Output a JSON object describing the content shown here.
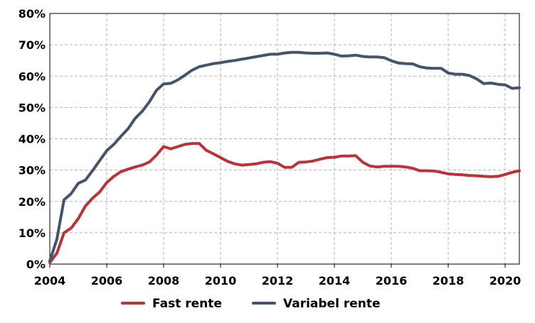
{
  "chart_data": {
    "type": "line",
    "title": "",
    "xlabel": "",
    "ylabel": "",
    "xlim": [
      2004,
      2020.5
    ],
    "ylim": [
      0,
      80
    ],
    "x_ticks": [
      2004,
      2006,
      2008,
      2010,
      2012,
      2014,
      2016,
      2018,
      2020
    ],
    "x_tick_labels": [
      "2004",
      "2006",
      "2008",
      "2010",
      "2012",
      "2014",
      "2016",
      "2018",
      "2020"
    ],
    "y_ticks": [
      0,
      10,
      20,
      30,
      40,
      50,
      60,
      70,
      80
    ],
    "y_tick_labels": [
      "0%",
      "10%",
      "20%",
      "30%",
      "40%",
      "50%",
      "60%",
      "70%",
      "80%"
    ],
    "grid": true,
    "legend_position": "bottom",
    "series": [
      {
        "name": "Fast rente",
        "color": "#be3139",
        "x": [
          2004.0,
          2004.25,
          2004.5,
          2004.75,
          2005.0,
          2005.25,
          2005.5,
          2005.75,
          2006.0,
          2006.25,
          2006.5,
          2006.75,
          2007.0,
          2007.25,
          2007.5,
          2007.75,
          2008.0,
          2008.25,
          2008.5,
          2008.75,
          2009.0,
          2009.25,
          2009.5,
          2009.75,
          2010.0,
          2010.25,
          2010.5,
          2010.75,
          2011.0,
          2011.25,
          2011.5,
          2011.75,
          2012.0,
          2012.25,
          2012.5,
          2012.75,
          2013.0,
          2013.25,
          2013.5,
          2013.75,
          2014.0,
          2014.25,
          2014.5,
          2014.75,
          2015.0,
          2015.25,
          2015.5,
          2015.75,
          2016.0,
          2016.25,
          2016.5,
          2016.75,
          2017.0,
          2017.25,
          2017.5,
          2017.75,
          2018.0,
          2018.25,
          2018.5,
          2018.75,
          2019.0,
          2019.25,
          2019.5,
          2019.75,
          2020.0,
          2020.25,
          2020.5
        ],
        "values": [
          0.5,
          3.5,
          10,
          11.5,
          14.5,
          18.5,
          21,
          23,
          26,
          28,
          29.5,
          30.3,
          31,
          31.6,
          32.6,
          34.8,
          37.5,
          36.8,
          37.5,
          38.2,
          38.5,
          38.5,
          36.3,
          35.2,
          34.0,
          32.8,
          32.0,
          31.6,
          31.8,
          32.0,
          32.5,
          32.7,
          32.2,
          30.9,
          30.9,
          32.5,
          32.6,
          32.9,
          33.5,
          34.0,
          34.1,
          34.5,
          34.5,
          34.6,
          32.5,
          31.3,
          31.0,
          31.2,
          31.2,
          31.2,
          31.0,
          30.6,
          29.8,
          29.8,
          29.7,
          29.3,
          28.8,
          28.6,
          28.5,
          28.3,
          28.2,
          28.0,
          27.9,
          28.0,
          28.6,
          29.3,
          29.8
        ]
      },
      {
        "name": "Variabel rente",
        "color": "#44546a",
        "x": [
          2004.0,
          2004.25,
          2004.5,
          2004.75,
          2005.0,
          2005.25,
          2005.5,
          2005.75,
          2006.0,
          2006.25,
          2006.5,
          2006.75,
          2007.0,
          2007.25,
          2007.5,
          2007.75,
          2008.0,
          2008.25,
          2008.5,
          2008.75,
          2009.0,
          2009.25,
          2009.5,
          2009.75,
          2010.0,
          2010.25,
          2010.5,
          2010.75,
          2011.0,
          2011.25,
          2011.5,
          2011.75,
          2012.0,
          2012.25,
          2012.5,
          2012.75,
          2013.0,
          2013.25,
          2013.5,
          2013.75,
          2014.0,
          2014.25,
          2014.5,
          2014.75,
          2015.0,
          2015.25,
          2015.5,
          2015.75,
          2016.0,
          2016.25,
          2016.5,
          2016.75,
          2017.0,
          2017.25,
          2017.5,
          2017.75,
          2018.0,
          2018.25,
          2018.5,
          2018.75,
          2019.0,
          2019.25,
          2019.5,
          2019.75,
          2020.0,
          2020.25,
          2020.5
        ],
        "values": [
          1.0,
          8,
          20.5,
          22.5,
          25.8,
          26.8,
          29.8,
          33.0,
          36.2,
          38.2,
          40.8,
          43.2,
          46.5,
          48.8,
          51.8,
          55.5,
          57.5,
          57.7,
          58.8,
          60.3,
          61.9,
          63.0,
          63.5,
          64.0,
          64.3,
          64.7,
          65.0,
          65.4,
          65.8,
          66.2,
          66.6,
          67.0,
          67.0,
          67.4,
          67.6,
          67.6,
          67.4,
          67.3,
          67.3,
          67.4,
          67.0,
          66.4,
          66.5,
          66.7,
          66.3,
          66.1,
          66.1,
          65.9,
          64.9,
          64.2,
          64.0,
          63.9,
          63.0,
          62.6,
          62.5,
          62.5,
          61.0,
          60.6,
          60.6,
          60.2,
          59.1,
          57.6,
          57.8,
          57.4,
          57.2,
          56.1,
          56.3
        ]
      }
    ]
  }
}
